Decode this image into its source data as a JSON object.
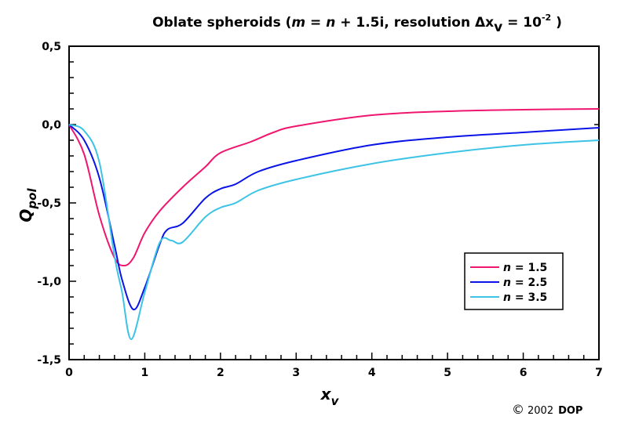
{
  "chart_data": {
    "type": "line",
    "title": {
      "prefix": "Oblate spheroids (",
      "m": "m",
      "eq1": " = ",
      "n": "n",
      "rest": " + 1.5i, resolution Δx",
      "sub": "v",
      "eq2": " = 10",
      "sup": "-2",
      "close": " )"
    },
    "xlabel": {
      "main": "x",
      "sub": "v"
    },
    "ylabel": {
      "main": "Q",
      "sub": "pol"
    },
    "xlim": [
      0,
      7
    ],
    "ylim": [
      -1.5,
      0.5
    ],
    "xticks": [
      0,
      1,
      2,
      3,
      4,
      5,
      6,
      7
    ],
    "xtick_labels": [
      "0",
      "1",
      "2",
      "3",
      "4",
      "5",
      "6",
      "7"
    ],
    "yticks": [
      0.5,
      0,
      -0.5,
      -1,
      -1.5
    ],
    "ytick_labels": [
      "0,5",
      "0,0",
      "-0,5",
      "-1,0",
      "-1,5"
    ],
    "legend_position": "lower-right",
    "series": [
      {
        "name": "n = 1.5",
        "italic": "n",
        "value_label": " = 1.5",
        "color": "#f0156e",
        "x": [
          0,
          0.2,
          0.4,
          0.6,
          0.73,
          0.85,
          1.0,
          1.2,
          1.5,
          1.8,
          2.0,
          2.4,
          2.7,
          3,
          4,
          5,
          6,
          7
        ],
        "y": [
          0,
          -0.19,
          -0.58,
          -0.85,
          -0.9,
          -0.85,
          -0.69,
          -0.55,
          -0.4,
          -0.27,
          -0.18,
          -0.11,
          -0.05,
          -0.01,
          0.06,
          0.085,
          0.095,
          0.1
        ]
      },
      {
        "name": "n = 2.5",
        "italic": "n",
        "value_label": " = 2.5",
        "color": "#0a14e6",
        "x": [
          0,
          0.2,
          0.4,
          0.6,
          0.7,
          0.85,
          1.0,
          1.2,
          1.3,
          1.5,
          1.8,
          2.0,
          2.2,
          2.5,
          3,
          4,
          5,
          6,
          7
        ],
        "y": [
          0,
          -0.1,
          -0.34,
          -0.77,
          -0.99,
          -1.18,
          -1.04,
          -0.76,
          -0.67,
          -0.63,
          -0.47,
          -0.41,
          -0.38,
          -0.3,
          -0.23,
          -0.13,
          -0.08,
          -0.05,
          -0.02
        ]
      },
      {
        "name": "n = 3.5",
        "italic": "n",
        "value_label": " = 3.5",
        "color": "#3cc3e6",
        "x": [
          0,
          0.2,
          0.4,
          0.6,
          0.7,
          0.82,
          1.0,
          1.2,
          1.35,
          1.5,
          1.8,
          2.0,
          2.2,
          2.5,
          3,
          4,
          5,
          6,
          7
        ],
        "y": [
          0,
          -0.04,
          -0.24,
          -0.84,
          -1.07,
          -1.37,
          -1.07,
          -0.75,
          -0.74,
          -0.75,
          -0.59,
          -0.53,
          -0.5,
          -0.42,
          -0.35,
          -0.25,
          -0.18,
          -0.13,
          -0.1
        ]
      }
    ]
  },
  "footer": {
    "copyright_symbol": "©",
    "year": "2002",
    "brand": "DOP"
  }
}
